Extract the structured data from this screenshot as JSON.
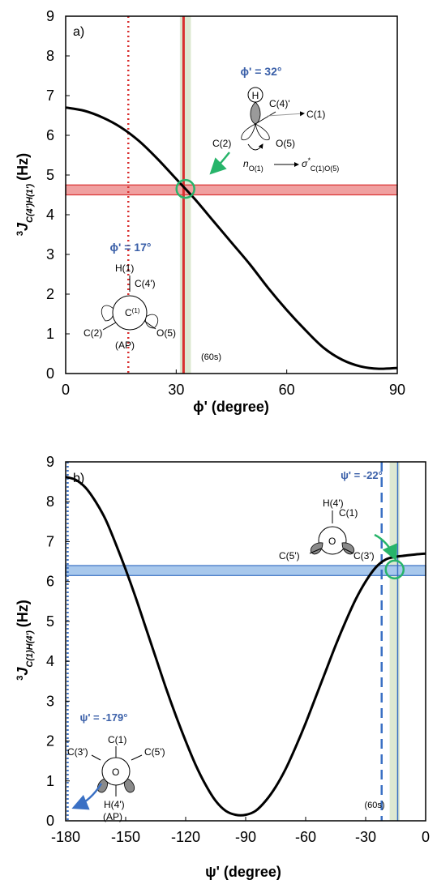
{
  "chart_data": [
    {
      "type": "line",
      "panel_label": "a)",
      "xlabel": "ϕ' (degree)",
      "ylabel": "³J C(4')H(1') (Hz)",
      "ylabel_main": "3",
      "ylabel_j": "J",
      "ylabel_sub": "C(4')H(1')",
      "ylabel_unit": "(Hz)",
      "xlim": [
        0,
        90
      ],
      "ylim": [
        0,
        9
      ],
      "xticks": [
        0,
        30,
        60,
        90
      ],
      "yticks": [
        0,
        1,
        2,
        3,
        4,
        5,
        6,
        7,
        8,
        9
      ],
      "series": [
        {
          "x": [
            0,
            5,
            10,
            15,
            20,
            25,
            30,
            35,
            40,
            45,
            50,
            55,
            60,
            65,
            70,
            75,
            80,
            85,
            90
          ],
          "y": [
            6.7,
            6.62,
            6.45,
            6.2,
            5.85,
            5.4,
            4.9,
            4.4,
            3.85,
            3.3,
            2.75,
            2.15,
            1.6,
            1.1,
            0.65,
            0.35,
            0.18,
            0.12,
            0.14
          ]
        }
      ],
      "measured_j": 4.65,
      "measured_band": [
        4.5,
        4.75
      ],
      "solution_x": 32,
      "solution_line_x": 32,
      "solution_band": [
        31,
        34
      ],
      "ap_line_x": 17,
      "intersection": [
        32.5,
        4.65
      ],
      "annotations": {
        "phi_solution": "ϕ' = 32°",
        "phi_ap": "ϕ' = 17°",
        "h_label": "H",
        "c4p": "C(4)'",
        "c1": "C(1)",
        "c2": "C(2)",
        "o5": "O(5)",
        "n_label": "n",
        "n_sub": "O(1)",
        "sigma_label": "σ",
        "sigma_star": "*",
        "sigma_sub": "C(1)O(5)",
        "newman_h1": "H(1)",
        "newman_c4p": "C(4')",
        "newman_c": "C",
        "newman_c_sup": "(1)",
        "newman_c2": "C(2)",
        "newman_o5": "O(5)",
        "ap": "(AP)",
        "sixty_s": "(60s)"
      },
      "colors": {
        "curve": "#000000",
        "red": "#d93030",
        "band_red": "#f0a0a0",
        "green": "#27b46a",
        "pale_green": "#dde8d2",
        "label_blue": "#3a5fa8"
      }
    },
    {
      "type": "line",
      "panel_label": "b)",
      "xlabel": "ψ' (degree)",
      "ylabel": "³J C(1)H(4') (Hz)",
      "ylabel_main": "3",
      "ylabel_j": "J",
      "ylabel_sub": "C(1)H(4')",
      "ylabel_unit": "(Hz)",
      "xlim": [
        -180,
        0
      ],
      "ylim": [
        0,
        9
      ],
      "xticks": [
        -180,
        -150,
        -120,
        -90,
        -60,
        -30,
        0
      ],
      "yticks": [
        0,
        1,
        2,
        3,
        4,
        5,
        6,
        7,
        8,
        9
      ],
      "series": [
        {
          "x": [
            -180,
            -175,
            -170,
            -165,
            -160,
            -155,
            -150,
            -145,
            -140,
            -135,
            -130,
            -125,
            -120,
            -115,
            -110,
            -105,
            -100,
            -95,
            -90,
            -85,
            -80,
            -75,
            -70,
            -65,
            -60,
            -55,
            -50,
            -45,
            -40,
            -35,
            -30,
            -25,
            -20,
            -15,
            -10,
            -5,
            0
          ],
          "y": [
            8.62,
            8.55,
            8.35,
            8.0,
            7.55,
            6.95,
            6.3,
            5.6,
            4.85,
            4.1,
            3.35,
            2.65,
            2.0,
            1.4,
            0.9,
            0.5,
            0.25,
            0.15,
            0.15,
            0.25,
            0.5,
            0.85,
            1.3,
            1.85,
            2.45,
            3.1,
            3.75,
            4.4,
            5.0,
            5.55,
            6.0,
            6.35,
            6.55,
            6.62,
            6.65,
            6.68,
            6.7
          ]
        }
      ],
      "measured_j": 6.28,
      "measured_band": [
        6.15,
        6.4
      ],
      "solution_x": -14,
      "solution_line_x": -14,
      "solution_band": [
        -18,
        -13
      ],
      "dashed_line_x": -22,
      "ap_line_x": -179,
      "intersection": [
        -15.5,
        6.3
      ],
      "annotations": {
        "psi_solution": "ψ' = -22°",
        "psi_ap": "ψ' = -179°",
        "h4p": "H(4')",
        "c1": "C(1)",
        "o": "O",
        "c5p": "C(5')",
        "c3p": "C(3')",
        "ap_c3p": "C(3')",
        "ap_c1": "C(1)",
        "ap_c5p": "C(5')",
        "ap_o": "O",
        "ap_h4p": "H(4')",
        "ap": "(AP)",
        "sixty_s": "(60s)"
      },
      "colors": {
        "curve": "#000000",
        "blue": "#3a70c4",
        "band_blue": "#a8c8ec",
        "green": "#27b46a",
        "pale_green": "#dde8d2",
        "label_blue": "#3a5fa8"
      }
    }
  ]
}
